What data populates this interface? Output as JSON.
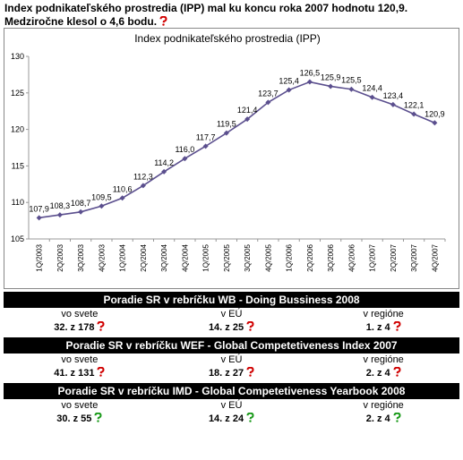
{
  "header": {
    "text": "Index podnikateľského prostredia (IPP) mal ku koncu roka 2007 hodnotu 120,9. Medziročne klesol o 4,6 bodu.",
    "icon_color": "#d00000"
  },
  "chart_data": {
    "type": "line",
    "title": "Index podnikateľského prostredia (IPP)",
    "categories": [
      "1Q/2003",
      "2Q/2003",
      "3Q/2003",
      "4Q/2003",
      "1Q/2004",
      "2Q/2004",
      "3Q/2004",
      "4Q/2004",
      "1Q/2005",
      "2Q/2005",
      "3Q/2005",
      "4Q/2005",
      "1Q/2006",
      "2Q/2006",
      "3Q/2006",
      "4Q/2006",
      "1Q/2007",
      "2Q/2007",
      "3Q/2007",
      "4Q/2007"
    ],
    "values": [
      107.9,
      108.3,
      108.7,
      109.5,
      110.6,
      112.3,
      114.2,
      116.0,
      117.7,
      119.5,
      121.4,
      123.7,
      125.4,
      126.5,
      125.9,
      125.5,
      124.4,
      123.4,
      122.1,
      120.9
    ],
    "value_labels": [
      "107,9",
      "108,3",
      "108,7",
      "109,5",
      "110,6",
      "112,3",
      "114,2",
      "116,0",
      "117,7",
      "119,5",
      "121,4",
      "123,7",
      "125,4",
      "126,5",
      "125,9",
      "125,5",
      "124,4",
      "123,4",
      "122,1",
      "120,9"
    ],
    "color": "#5b4f8e",
    "ylim": [
      105,
      130
    ],
    "yticks": [
      105,
      110,
      115,
      120,
      125,
      130
    ],
    "grid": false
  },
  "rankings": [
    {
      "title": "Poradie SR v rebríčku WB - Doing Bussiness 2008",
      "columns": [
        "vo svete",
        "v EÚ",
        "v regióne"
      ],
      "values": [
        "32. z 178",
        "14. z 25",
        "1. z 4"
      ],
      "icon_colors": [
        "#d00000",
        "#d00000",
        "#d00000"
      ]
    },
    {
      "title": "Poradie SR v rebríčku WEF - Global Competetiveness Index 2007",
      "columns": [
        "vo svete",
        "v EÚ",
        "v regióne"
      ],
      "values": [
        "41. z 131",
        "18. z 27",
        "2. z 4"
      ],
      "icon_colors": [
        "#d00000",
        "#d00000",
        "#d00000"
      ]
    },
    {
      "title": "Poradie SR v rebríčku IMD - Global Competetiveness Yearbook 2008",
      "columns": [
        "vo svete",
        "v EÚ",
        "v regióne"
      ],
      "values": [
        "30. z 55",
        "14. z 24",
        "2. z 4"
      ],
      "icon_colors": [
        "#1a9a1a",
        "#1a9a1a",
        "#1a9a1a"
      ]
    }
  ]
}
